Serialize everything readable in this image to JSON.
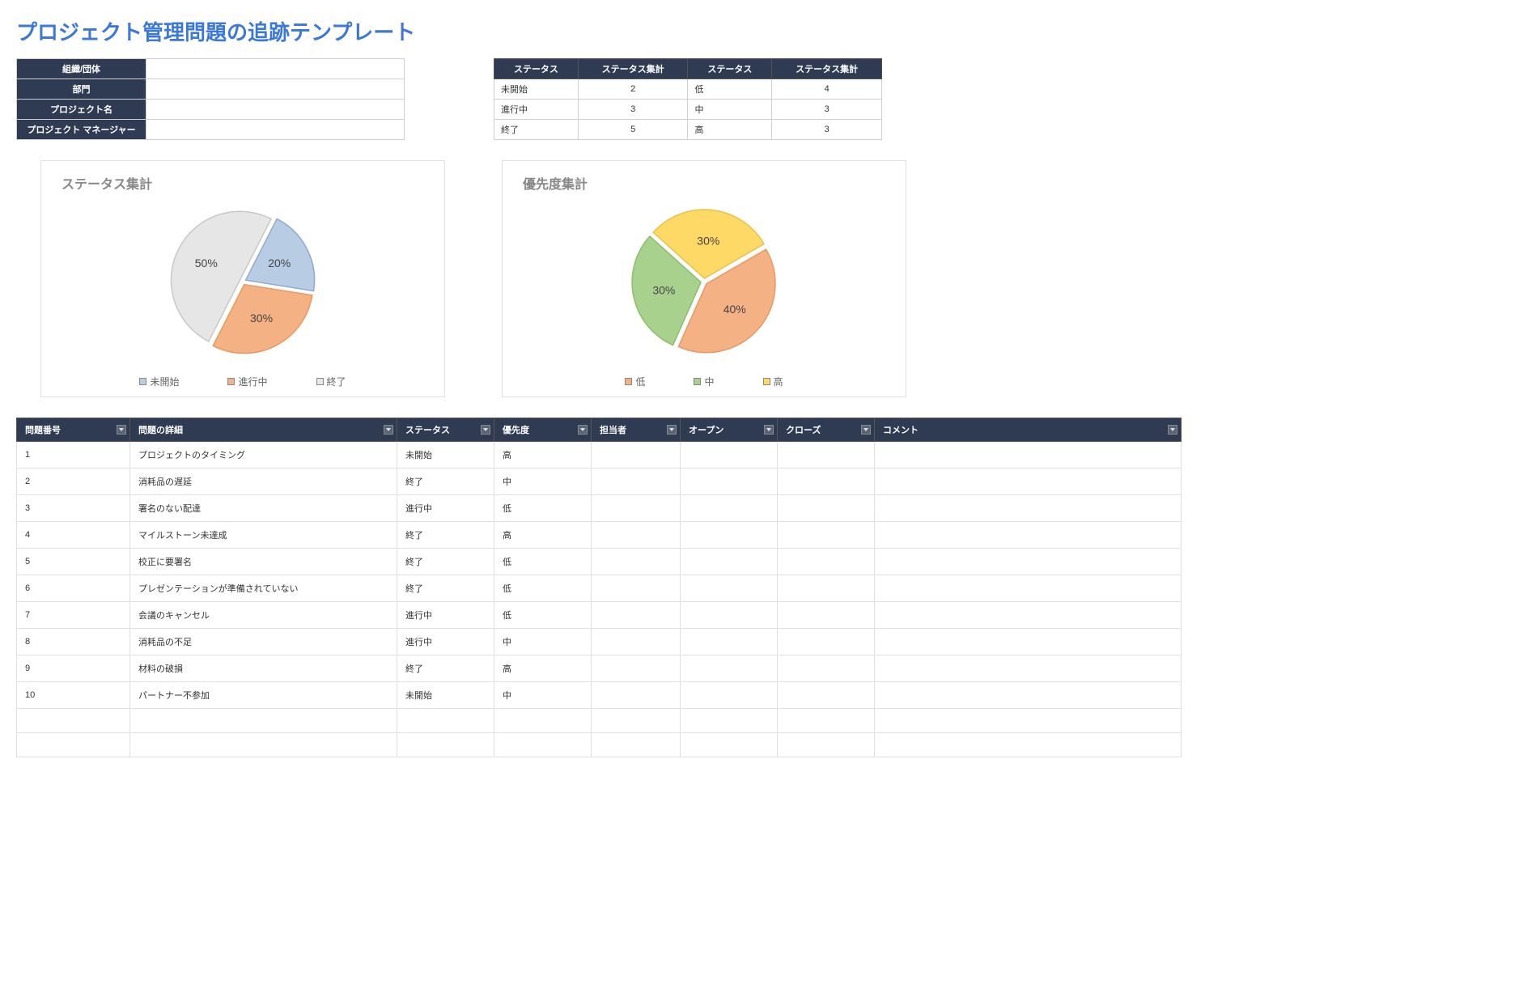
{
  "title": "プロジェクト管理問題の追跡テンプレート",
  "info_fields": [
    {
      "label": "組織/団体",
      "value": ""
    },
    {
      "label": "部門",
      "value": ""
    },
    {
      "label": "プロジェクト名",
      "value": ""
    },
    {
      "label": "プロジェクト マネージャー",
      "value": ""
    }
  ],
  "summary_headers": [
    "ステータス",
    "ステータス集計",
    "ステータス",
    "ステータス集計"
  ],
  "summary_rows": [
    [
      "未開始",
      "2",
      "低",
      "4"
    ],
    [
      "進行中",
      "3",
      "中",
      "3"
    ],
    [
      "終了",
      "5",
      "高",
      "3"
    ]
  ],
  "status_chart": {
    "title": "ステータス集計",
    "type": "pie",
    "slices": [
      {
        "label": "未開始",
        "pct": 20,
        "color_fill": "#b8cce4",
        "color_stroke": "#8fa9d6"
      },
      {
        "label": "進行中",
        "pct": 30,
        "color_fill": "#f4b183",
        "color_stroke": "#e89a60"
      },
      {
        "label": "終了",
        "pct": 50,
        "color_fill": "#e6e6e6",
        "color_stroke": "#c8c8c8"
      }
    ],
    "label_fontsize": 14,
    "title_fontsize": 16,
    "title_color": "#888888",
    "background": "#ffffff",
    "start_angle_deg": -63,
    "explode": 4,
    "legend_swatches": [
      "#b8cce4",
      "#f4b183",
      "#e6e6e6"
    ]
  },
  "priority_chart": {
    "title": "優先度集計",
    "type": "pie",
    "slices": [
      {
        "label": "低",
        "pct": 40,
        "color_fill": "#f4b183",
        "color_stroke": "#e89a60"
      },
      {
        "label": "中",
        "pct": 30,
        "color_fill": "#a9d18e",
        "color_stroke": "#8bbf6e"
      },
      {
        "label": "高",
        "pct": 30,
        "color_fill": "#ffd966",
        "color_stroke": "#e6c34d"
      }
    ],
    "label_fontsize": 14,
    "title_fontsize": 16,
    "title_color": "#888888",
    "background": "#ffffff",
    "start_angle_deg": -30,
    "explode": 4,
    "legend_swatches": [
      "#f4b183",
      "#a9d18e",
      "#ffd966"
    ]
  },
  "issues_headers": [
    "問題番号",
    "問題の詳細",
    "ステータス",
    "優先度",
    "担当者",
    "オープン",
    "クローズ",
    "コメント"
  ],
  "issues_rows": [
    [
      "1",
      "プロジェクトのタイミング",
      "未開始",
      "高",
      "",
      "",
      "",
      ""
    ],
    [
      "2",
      "消耗品の遅延",
      "終了",
      "中",
      "",
      "",
      "",
      ""
    ],
    [
      "3",
      "署名のない配達",
      "進行中",
      "低",
      "",
      "",
      "",
      ""
    ],
    [
      "4",
      "マイルストーン未達成",
      "終了",
      "高",
      "",
      "",
      "",
      ""
    ],
    [
      "5",
      "校正に要署名",
      "終了",
      "低",
      "",
      "",
      "",
      ""
    ],
    [
      "6",
      "プレゼンテーションが準備されていない",
      "終了",
      "低",
      "",
      "",
      "",
      ""
    ],
    [
      "7",
      "会議のキャンセル",
      "進行中",
      "低",
      "",
      "",
      "",
      ""
    ],
    [
      "8",
      "消耗品の不足",
      "進行中",
      "中",
      "",
      "",
      "",
      ""
    ],
    [
      "9",
      "材料の破損",
      "終了",
      "高",
      "",
      "",
      "",
      ""
    ],
    [
      "10",
      "パートナー不参加",
      "未開始",
      "中",
      "",
      "",
      "",
      ""
    ],
    [
      "",
      "",
      "",
      "",
      "",
      "",
      "",
      ""
    ],
    [
      "",
      "",
      "",
      "",
      "",
      "",
      "",
      ""
    ]
  ]
}
